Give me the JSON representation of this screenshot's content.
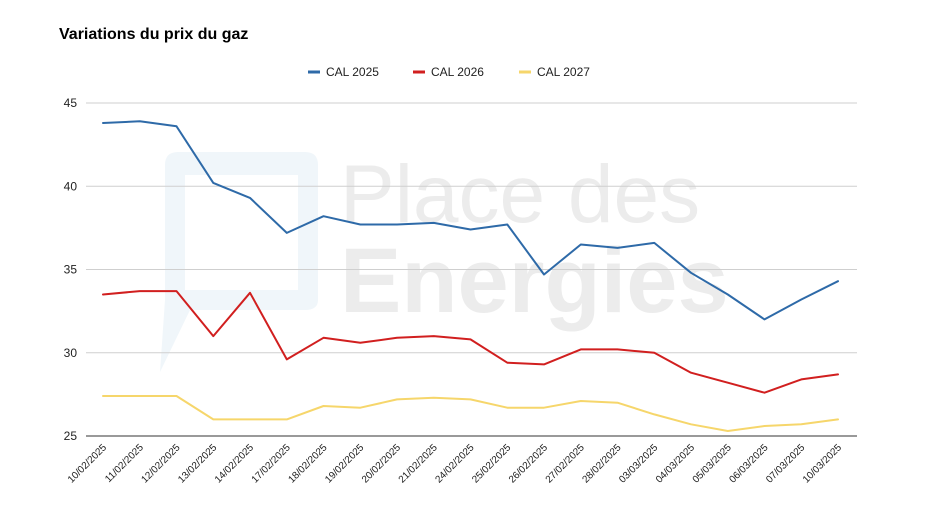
{
  "chart_data": {
    "type": "line",
    "title": "Variations du prix du gaz",
    "xlabel": "",
    "ylabel": "",
    "ylim": [
      25,
      45
    ],
    "yticks": [
      "25",
      "30",
      "35",
      "40",
      "45"
    ],
    "grid": true,
    "legend_position": "top",
    "categories": [
      "10/02/2025",
      "11/02/2025",
      "12/02/2025",
      "13/02/2025",
      "14/02/2025",
      "17/02/2025",
      "18/02/2025",
      "19/02/2025",
      "20/02/2025",
      "21/02/2025",
      "24/02/2025",
      "25/02/2025",
      "26/02/2025",
      "27/02/2025",
      "28/02/2025",
      "03/03/2025",
      "04/03/2025",
      "05/03/2025",
      "06/03/2025",
      "07/03/2025",
      "10/03/2025"
    ],
    "series": [
      {
        "name": "CAL 2025",
        "color": "#2e6aa8",
        "values": [
          43.8,
          43.9,
          43.6,
          40.2,
          39.3,
          37.2,
          38.2,
          37.7,
          37.7,
          37.8,
          37.4,
          37.7,
          34.7,
          36.5,
          36.3,
          36.6,
          34.8,
          33.5,
          32.0,
          33.2,
          34.3
        ]
      },
      {
        "name": "CAL 2026",
        "color": "#d11f1f",
        "values": [
          33.5,
          33.7,
          33.7,
          31.0,
          33.6,
          29.6,
          30.9,
          30.6,
          30.9,
          31.0,
          30.8,
          29.4,
          29.3,
          30.2,
          30.2,
          30.0,
          28.8,
          28.2,
          27.6,
          28.4,
          28.7
        ]
      },
      {
        "name": "CAL 2027",
        "color": "#f6d66b",
        "values": [
          27.4,
          27.4,
          27.4,
          26.0,
          26.0,
          26.0,
          26.8,
          26.7,
          27.2,
          27.3,
          27.2,
          26.7,
          26.7,
          27.1,
          27.0,
          26.3,
          25.7,
          25.3,
          25.6,
          25.7,
          26.0
        ]
      }
    ]
  },
  "watermark": {
    "line1": "Place des",
    "line2": "Energies"
  }
}
